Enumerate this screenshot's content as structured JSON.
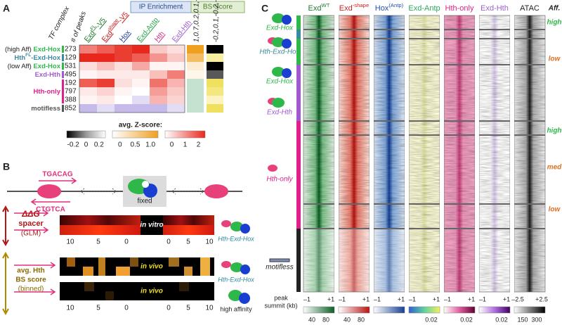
{
  "panel_a": {
    "label": "A",
    "ip_enrichment": "IP Enrichment",
    "bs_score": "BS Score",
    "tf_complex": "TF complex",
    "num_peaks": "# of peaks",
    "binding_loss": [
      1.0,
      0.7,
      0.2,
      0.1,
      -0.2,
      -0.2,
      -0.2,
      -0.2
    ],
    "accessibility": [
      -0.2,
      0.1,
      -0.2,
      -0.1,
      0.2,
      0.15,
      0.05,
      0.2
    ],
    "columns": [
      {
        "base": "Exd",
        "sup": "FL",
        "rest": "-V5",
        "color": "#1f7a2e"
      },
      {
        "base": "Exd",
        "sup": "shape",
        "rest": "-V5",
        "color": "#c81818"
      },
      {
        "base": "Hox",
        "color": "#1f3f9a"
      },
      {
        "base": "Exd-Antp",
        "color": "#2ca44e"
      },
      {
        "base": "Hth",
        "color": "#d0308a"
      },
      {
        "base": "Exd-Hth",
        "color": "#a060d0"
      }
    ],
    "row_labels": [
      {
        "prefix": "(high Aff) ",
        "base": "Exd-Hox",
        "color": "#2eb84a"
      },
      {
        "base": "Hth",
        "sup": "FL",
        "rest": "-Exd-Hox",
        "color": "#3a8aa0"
      },
      {
        "prefix": "(low Aff) ",
        "base": "Exd-Hox",
        "color": "#2eb84a"
      },
      {
        "base": "Exd-Hth",
        "color": "#a05ad0"
      },
      {
        "base": "Hth-only",
        "color": "#e0208a"
      },
      {
        "base": "motifless",
        "color": "#555555"
      }
    ],
    "peaks": [
      273,
      129,
      531,
      495,
      192,
      797,
      388,
      852
    ],
    "enrichment": [
      [
        1.2,
        1.5,
        1.8,
        2.0,
        0.5,
        0.3
      ],
      [
        2.0,
        2.0,
        1.8,
        1.5,
        1.0,
        0.5
      ],
      [
        0.3,
        0.6,
        0.3,
        0.8,
        0.1,
        0.1
      ],
      [
        0.1,
        0.2,
        0.2,
        0.2,
        0.6,
        1.2
      ],
      [
        1.5,
        1.8,
        0.3,
        0.1,
        1.3,
        0.7
      ],
      [
        0.2,
        0.4,
        0.1,
        0.0,
        0.9,
        0.5
      ],
      [
        0.1,
        0.2,
        0.0,
        -0.1,
        0.7,
        0.4
      ],
      [
        -0.2,
        -0.1,
        -0.2,
        -0.2,
        -0.2,
        -0.1
      ]
    ],
    "colorbar_title": "avg. Z-score:",
    "colorbar_ticks": [
      [
        "-0.2",
        "0",
        "0.2"
      ],
      [
        "0",
        "0.5",
        "1.0"
      ],
      [
        "0",
        "1",
        "2"
      ]
    ]
  },
  "panel_b": {
    "label": "B",
    "motif_top": "TGACAG",
    "motif_bottom": "CTGTCA",
    "fixed": "fixed",
    "ddg": "ΔΔG",
    "spacer": "spacer",
    "glm": "(GLM)",
    "avg_hth": "avg. Hth",
    "bs_score": "BS score",
    "binned": "(binned)",
    "strips": [
      "in vitro",
      "in vivo",
      "in vivo"
    ],
    "icon_labels": [
      "Hth-Exd-Hox",
      "Hth-Exd-Hox",
      "high affinity"
    ],
    "ticks_left": [
      "10",
      "5",
      "0"
    ],
    "ticks_right": [
      "0",
      "5",
      "10"
    ]
  },
  "panel_c": {
    "label": "C",
    "aff_header": "Aff.",
    "columns": [
      {
        "base": "Exd",
        "sup": "WT",
        "color": "#1f7a2e",
        "cbar": [
          "40",
          "80"
        ]
      },
      {
        "base": "Exd",
        "sup": "-shape",
        "color": "#d02020",
        "cbar": [
          "40",
          "80"
        ]
      },
      {
        "base": "Hox",
        "sup": "(Antp)",
        "color": "#2050b0"
      },
      {
        "base": "Exd-Antp",
        "color": "#2aaa5a",
        "cbar": [
          "0.02"
        ]
      },
      {
        "base": "Hth-only",
        "color": "#e0208a",
        "cbar": [
          "0.02"
        ]
      },
      {
        "base": "Exd-Hth",
        "color": "#a060d0",
        "cbar": [
          "0.02"
        ]
      },
      {
        "base": "ATAC",
        "color": "#222222",
        "cbar": [
          "150",
          "300"
        ]
      }
    ],
    "xticks": [
      "–1",
      "+1"
    ],
    "atac_xticks": [
      "–2.5",
      "+2.5"
    ],
    "x_axis_label": [
      "peak",
      "summit (kb)"
    ],
    "group_labels": [
      {
        "text": "Exd-Hox",
        "color": "#2eb84a"
      },
      {
        "text": "Hth-Exd-Hox",
        "color": "#3a8aa0"
      },
      {
        "text": "Exd-Hox",
        "color": "#2eb84a"
      },
      {
        "text": "Exd-Hth",
        "color": "#a05ad0"
      },
      {
        "text": "Hth-only",
        "color": "#e0208a"
      },
      {
        "text": "motifless",
        "color": "#222222"
      }
    ],
    "affinity": [
      {
        "text": "high",
        "color": "#2eb84a"
      },
      {
        "text": "low",
        "color": "#e07020"
      },
      {
        "text": "high",
        "color": "#2eb84a"
      },
      {
        "text": "med",
        "color": "#e07020"
      },
      {
        "text": "low",
        "color": "#e07020"
      }
    ]
  }
}
